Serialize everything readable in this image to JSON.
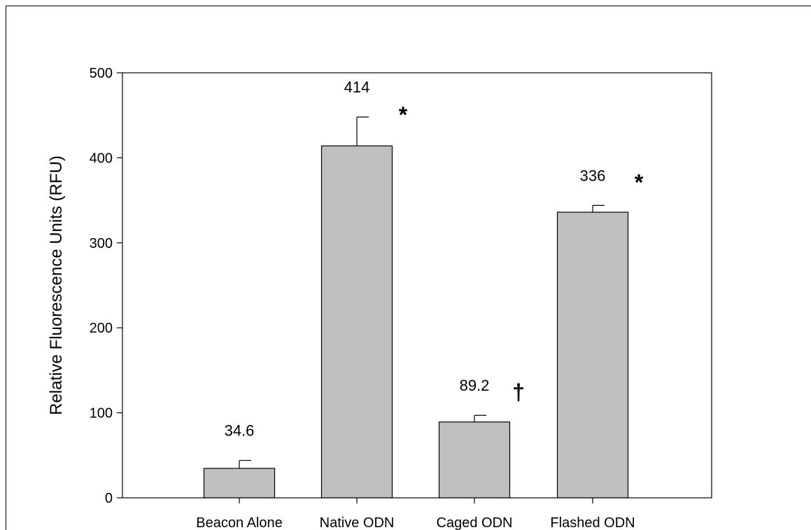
{
  "chart_data": {
    "type": "bar",
    "title": "",
    "xlabel": "",
    "ylabel": "Relative Fluorescence Units (RFU)",
    "ylim": [
      0,
      500
    ],
    "yticks": [
      0,
      100,
      200,
      300,
      400,
      500
    ],
    "categories": [
      "Beacon Alone",
      "Native ODN",
      "Caged ODN",
      "Flashed ODN"
    ],
    "values": [
      34.6,
      414,
      89.2,
      336
    ],
    "error_upper": [
      44,
      448,
      97,
      344
    ],
    "value_labels": [
      "34.6",
      "414",
      "89.2",
      "336"
    ],
    "significance_markers": [
      "",
      "*",
      "†",
      "*"
    ],
    "bar_color": "#c0c0c0",
    "grid": false,
    "legend": "none"
  }
}
